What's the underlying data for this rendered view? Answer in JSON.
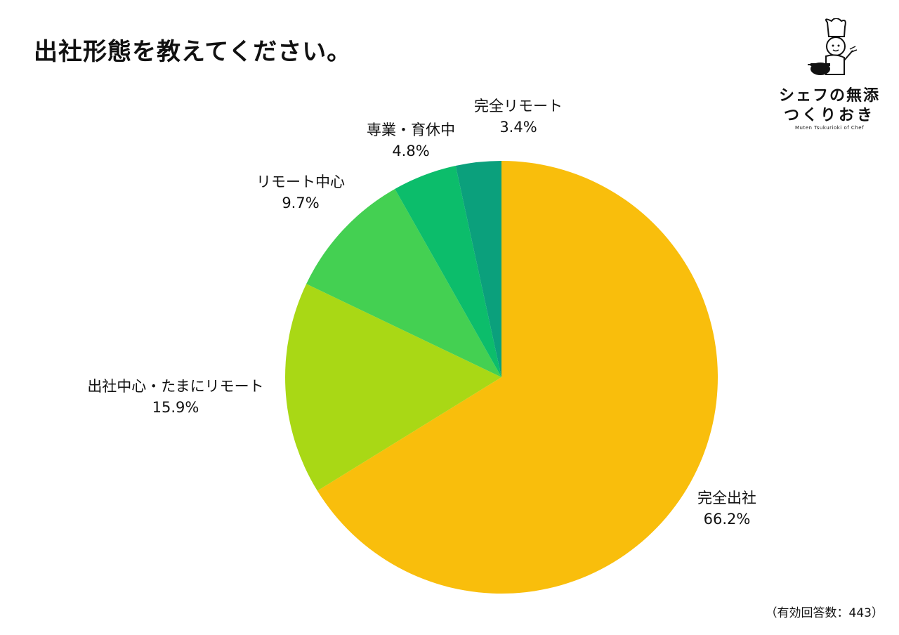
{
  "title": "出社形態を教えてください。",
  "footnote": "（有効回答数：443）",
  "logo": {
    "line1": "シェフの無添",
    "line2": "つくりおき",
    "line3": "Muten Tsukurioki of Chef"
  },
  "chart_data": {
    "type": "pie",
    "title": "出社形態を教えてください。",
    "start_angle_deg": 0,
    "direction": "clockwise",
    "slices": [
      {
        "label": "完全出社",
        "value": 66.2,
        "display": "66.2%",
        "color": "#F9BE0C"
      },
      {
        "label": "出社中心・たまにリモート",
        "value": 15.9,
        "display": "15.9%",
        "color": "#A9D815"
      },
      {
        "label": "リモート中心",
        "value": 9.7,
        "display": "9.7%",
        "color": "#44D052"
      },
      {
        "label": "専業・育休中",
        "value": 4.8,
        "display": "4.8%",
        "color": "#0CBD6B"
      },
      {
        "label": "完全リモート",
        "value": 3.4,
        "display": "3.4%",
        "color": "#0BA07C"
      }
    ]
  }
}
